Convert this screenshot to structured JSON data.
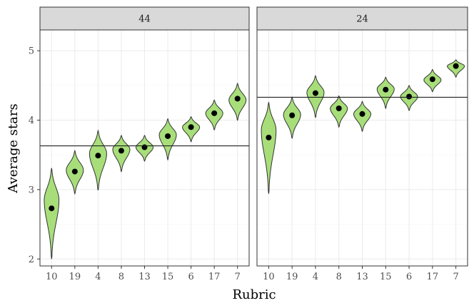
{
  "chart_data": {
    "type": "violin",
    "xlabel": "Rubric",
    "ylabel": "Average stars",
    "ylim": [
      1.9,
      5.3
    ],
    "yticks": [
      2,
      3,
      4,
      5
    ],
    "categories": [
      "10",
      "19",
      "4",
      "8",
      "13",
      "15",
      "6",
      "17",
      "7"
    ],
    "colors": {
      "fill": "#a8de7a",
      "outline": "#333333",
      "point": "#000000",
      "strip": "#d9d9d9"
    },
    "panels": [
      {
        "label": "44",
        "reference_line": 3.63,
        "violins": [
          {
            "category": "10",
            "mean": 2.73,
            "min": 2.0,
            "max": 3.31,
            "mode": 2.85
          },
          {
            "category": "19",
            "mean": 3.26,
            "min": 2.94,
            "max": 3.56,
            "mode": 3.28
          },
          {
            "category": "4",
            "mean": 3.49,
            "min": 2.99,
            "max": 3.85,
            "mode": 3.52
          },
          {
            "category": "8",
            "mean": 3.56,
            "min": 3.26,
            "max": 3.78,
            "mode": 3.58
          },
          {
            "category": "13",
            "mean": 3.61,
            "min": 3.41,
            "max": 3.78,
            "mode": 3.61
          },
          {
            "category": "15",
            "mean": 3.77,
            "min": 3.43,
            "max": 4.02,
            "mode": 3.79
          },
          {
            "category": "6",
            "mean": 3.9,
            "min": 3.69,
            "max": 4.05,
            "mode": 3.9
          },
          {
            "category": "17",
            "mean": 4.1,
            "min": 3.86,
            "max": 4.29,
            "mode": 4.1
          },
          {
            "category": "7",
            "mean": 4.31,
            "min": 4.0,
            "max": 4.53,
            "mode": 4.29
          }
        ]
      },
      {
        "label": "24",
        "reference_line": 4.33,
        "violins": [
          {
            "category": "10",
            "mean": 3.75,
            "min": 2.94,
            "max": 4.26,
            "mode": 3.86
          },
          {
            "category": "19",
            "mean": 4.07,
            "min": 3.74,
            "max": 4.33,
            "mode": 4.08
          },
          {
            "category": "4",
            "mean": 4.39,
            "min": 4.04,
            "max": 4.64,
            "mode": 4.4
          },
          {
            "category": "8",
            "mean": 4.17,
            "min": 3.9,
            "max": 4.35,
            "mode": 4.17
          },
          {
            "category": "13",
            "mean": 4.09,
            "min": 3.84,
            "max": 4.27,
            "mode": 4.09
          },
          {
            "category": "15",
            "mean": 4.44,
            "min": 4.17,
            "max": 4.62,
            "mode": 4.45
          },
          {
            "category": "6",
            "mean": 4.34,
            "min": 4.14,
            "max": 4.5,
            "mode": 4.34
          },
          {
            "category": "17",
            "mean": 4.59,
            "min": 4.41,
            "max": 4.73,
            "mode": 4.58
          },
          {
            "category": "7",
            "mean": 4.78,
            "min": 4.62,
            "max": 4.87,
            "mode": 4.78
          }
        ]
      }
    ]
  }
}
